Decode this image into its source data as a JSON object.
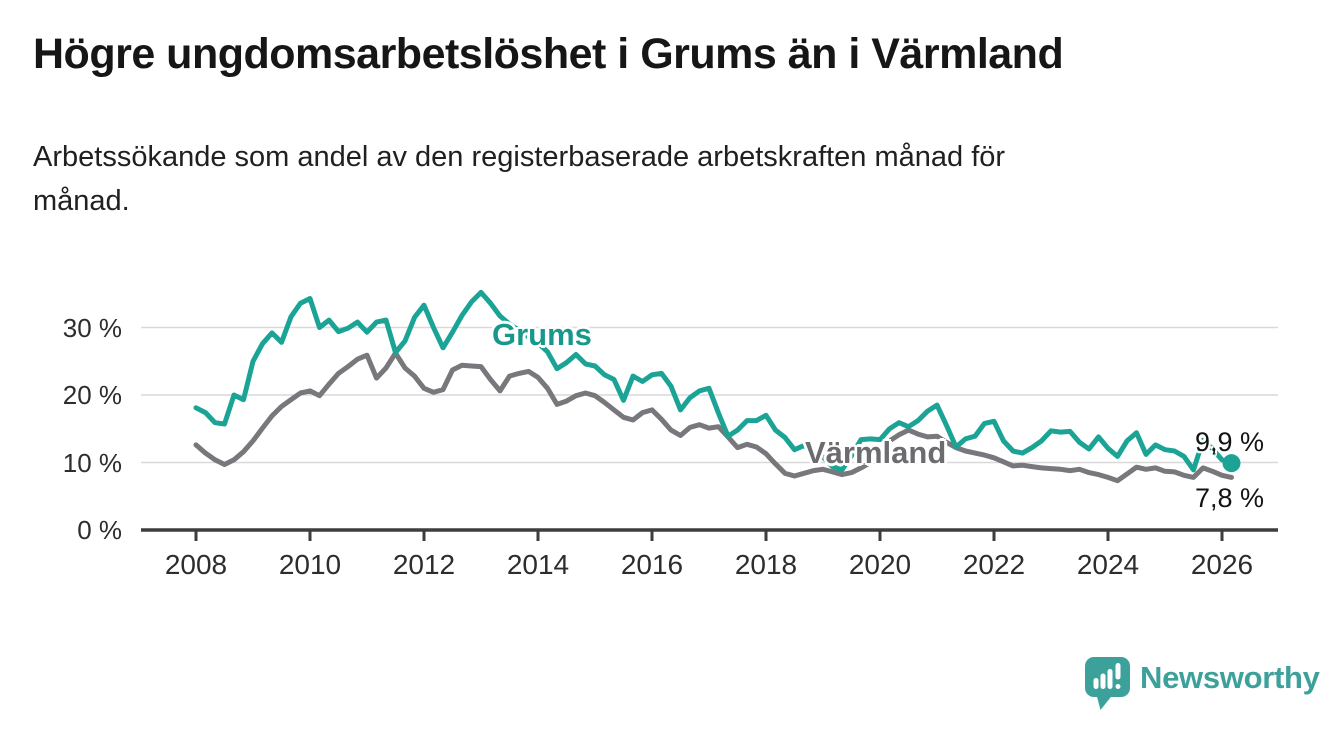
{
  "header": {
    "title": "Högre ungdomsarbetslöshet i Grums än i Värmland",
    "subtitle": "Arbetssökande som andel av den registerbaserade arbetskraften månad för\nmånad."
  },
  "footer": {
    "brand": "Newsworthy",
    "brand_color": "#3ca09b"
  },
  "chart_data": {
    "type": "line",
    "title": "Högre ungdomsarbetslöshet i Grums än i Värmland",
    "subtitle": "Arbetssökande som andel av den registerbaserade arbetskraften månad för månad.",
    "grid": "horizontal-only",
    "legend_position": "inline-labels",
    "x_axis": {
      "start_year": 2008,
      "points_per_year": 6,
      "tick_years": [
        2008,
        2010,
        2012,
        2014,
        2016,
        2018,
        2020,
        2022,
        2024,
        2026
      ]
    },
    "y_axis": {
      "ylim": [
        0,
        36
      ],
      "unit": "%",
      "ticks": [
        {
          "value": 0,
          "label": "0 %"
        },
        {
          "value": 10,
          "label": "10 %"
        },
        {
          "value": 20,
          "label": "20 %"
        },
        {
          "value": 30,
          "label": "30 %"
        }
      ]
    },
    "style": {
      "grid_color": "#d9d9d9",
      "axis_color": "#3d3d3d"
    },
    "series": [
      {
        "name": "Grums",
        "color": "#1ba496",
        "label_color": "#17988b",
        "end_dot": true,
        "values": [
          18.1,
          17.4,
          15.9,
          15.7,
          20.0,
          19.3,
          25.0,
          27.6,
          29.2,
          27.8,
          31.6,
          33.6,
          34.3,
          30.0,
          31.1,
          29.4,
          29.9,
          30.8,
          29.3,
          30.8,
          31.1,
          26.3,
          28.0,
          31.5,
          33.3,
          30.0,
          27.0,
          29.3,
          31.8,
          33.8,
          35.2,
          33.6,
          31.7,
          30.5,
          29.6,
          28.6,
          27.7,
          26.4,
          23.9,
          24.8,
          26.0,
          24.6,
          24.3,
          23.0,
          22.3,
          19.2,
          22.8,
          22.0,
          23.0,
          23.2,
          21.3,
          17.8,
          19.6,
          20.6,
          21.0,
          17.3,
          13.9,
          14.8,
          16.2,
          16.2,
          17.0,
          14.8,
          13.7,
          11.9,
          12.5,
          11.6,
          10.8,
          9.4,
          8.9,
          11.0,
          13.4,
          13.5,
          13.4,
          15.0,
          15.9,
          15.3,
          16.2,
          17.6,
          18.5,
          15.5,
          12.3,
          13.5,
          13.9,
          15.8,
          16.1,
          13.2,
          11.7,
          11.4,
          12.2,
          13.2,
          14.7,
          14.5,
          14.6,
          13.0,
          12.0,
          13.8,
          12.1,
          10.9,
          13.2,
          14.4,
          11.2,
          12.6,
          11.9,
          11.7,
          10.9,
          8.9,
          13.3,
          12.0,
          10.4,
          9.9
        ]
      },
      {
        "name": "Värmland",
        "color": "#77777c",
        "label_color": "#6b6b70",
        "end_dot": false,
        "values": [
          12.6,
          11.4,
          10.4,
          9.7,
          10.4,
          11.6,
          13.2,
          15.1,
          16.9,
          18.3,
          19.3,
          20.3,
          20.6,
          19.9,
          21.6,
          23.2,
          24.2,
          25.3,
          25.9,
          22.5,
          24.0,
          26.2,
          24.0,
          22.8,
          21.0,
          20.4,
          20.8,
          23.7,
          24.4,
          24.3,
          24.2,
          22.3,
          20.6,
          22.8,
          23.2,
          23.5,
          22.6,
          21.0,
          18.6,
          19.1,
          19.9,
          20.3,
          19.9,
          18.9,
          17.8,
          16.7,
          16.3,
          17.4,
          17.8,
          16.4,
          14.8,
          14.0,
          15.2,
          15.6,
          15.1,
          15.3,
          13.8,
          12.2,
          12.7,
          12.3,
          11.3,
          9.8,
          8.4,
          8.0,
          8.4,
          8.8,
          9.0,
          8.6,
          8.2,
          8.5,
          9.2,
          10.0,
          11.4,
          13.2,
          14.1,
          14.8,
          14.2,
          13.8,
          13.9,
          13.0,
          12.2,
          11.7,
          11.4,
          11.1,
          10.7,
          10.1,
          9.5,
          9.6,
          9.4,
          9.2,
          9.1,
          9.0,
          8.8,
          9.0,
          8.5,
          8.2,
          7.8,
          7.3,
          8.3,
          9.3,
          9.0,
          9.2,
          8.7,
          8.6,
          8.1,
          7.8,
          9.2,
          8.7,
          8.1,
          7.8
        ]
      }
    ],
    "end_labels": [
      {
        "series": "Grums",
        "text": "9,9 %"
      },
      {
        "series": "Värmland",
        "text": "7,8 %"
      }
    ]
  }
}
